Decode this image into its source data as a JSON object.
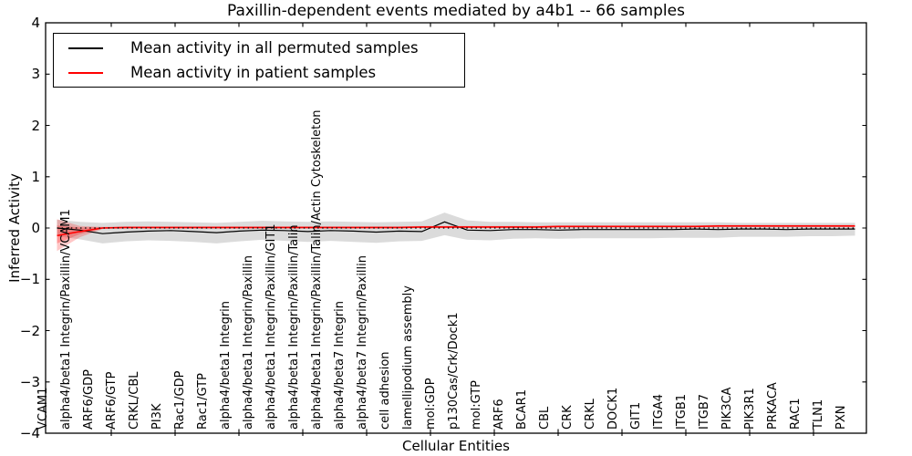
{
  "figure": {
    "title": "Paxillin-dependent events mediated by a4b1 -- 66 samples"
  },
  "chart_data": {
    "type": "line",
    "title": "Paxillin-dependent events mediated by a4b1 -- 66 samples",
    "xlabel": "Cellular Entities",
    "ylabel": "Inferred Activity",
    "ylim": [
      -4,
      4
    ],
    "grid": false,
    "legend_position": "upper left",
    "zero_line": {
      "value": 0,
      "style": "dotted",
      "color": "#000000"
    },
    "y_ticks": [
      4,
      3,
      2,
      1,
      0,
      -1,
      -2,
      -3,
      -4
    ],
    "y_tick_labels": [
      "4",
      "3",
      "2",
      "1",
      "0",
      "−1",
      "−2",
      "−3",
      "−4"
    ],
    "categories": [
      "VCAM1",
      "alpha4/beta1 Integrin/Paxillin/VCAM1",
      "ARF6/GDP",
      "ARF6/GTP",
      "CRKL/CBL",
      "PI3K",
      "Rac1/GDP",
      "Rac1/GTP",
      "alpha4/beta1 Integrin",
      "alpha4/beta1 Integrin/Paxillin",
      "alpha4/beta1 Integrin/Paxillin/GIT1",
      "alpha4/beta1 Integrin/Paxillin/Talin",
      "alpha4/beta1 Integrin/Paxillin/Talin/Actin Cytoskeleton",
      "alpha4/beta7 Integrin",
      "alpha4/beta7 Integrin/Paxillin",
      "cell adhesion",
      "lamellipodium assembly",
      "mol:GDP",
      "p130Cas/Crk/Dock1",
      "mol:GTP",
      "ARF6",
      "BCAR1",
      "CBL",
      "CRK",
      "CRKL",
      "DOCK1",
      "GIT1",
      "ITGA4",
      "ITGB1",
      "ITGB7",
      "PIK3CA",
      "PIK3R1",
      "PRKACA",
      "RAC1",
      "TLN1",
      "PXN"
    ],
    "series": [
      {
        "name": "Mean activity in all permuted samples",
        "color": "#000000",
        "band_color": "#999999",
        "band_opacity": 0.35,
        "values": [
          0.0,
          -0.04,
          -0.11,
          -0.08,
          -0.06,
          -0.05,
          -0.07,
          -0.09,
          -0.06,
          -0.04,
          -0.05,
          -0.07,
          -0.05,
          -0.06,
          -0.08,
          -0.06,
          -0.07,
          0.12,
          -0.04,
          -0.05,
          -0.03,
          -0.03,
          -0.04,
          -0.03,
          -0.03,
          -0.03,
          -0.03,
          -0.03,
          -0.02,
          -0.03,
          -0.02,
          -0.02,
          -0.03,
          -0.02,
          -0.02,
          -0.02
        ],
        "band_upper": [
          0.16,
          0.12,
          0.1,
          0.12,
          0.13,
          0.12,
          0.11,
          0.1,
          0.12,
          0.14,
          0.13,
          0.12,
          0.13,
          0.12,
          0.11,
          0.12,
          0.13,
          0.3,
          0.15,
          0.12,
          0.12,
          0.11,
          0.11,
          0.11,
          0.11,
          0.11,
          0.11,
          0.11,
          0.11,
          0.11,
          0.1,
          0.1,
          0.1,
          0.1,
          0.1,
          0.1
        ],
        "band_lower": [
          -0.16,
          -0.22,
          -0.3,
          -0.26,
          -0.24,
          -0.25,
          -0.27,
          -0.3,
          -0.26,
          -0.23,
          -0.25,
          -0.27,
          -0.25,
          -0.27,
          -0.29,
          -0.26,
          -0.25,
          -0.14,
          -0.23,
          -0.24,
          -0.21,
          -0.2,
          -0.21,
          -0.2,
          -0.2,
          -0.2,
          -0.2,
          -0.19,
          -0.19,
          -0.19,
          -0.17,
          -0.17,
          -0.17,
          -0.16,
          -0.16,
          -0.15
        ]
      },
      {
        "name": "Mean activity in patient samples",
        "color": "#ff0000",
        "band_color": "#ff0000",
        "band_opacity": 0.22,
        "values": [
          -0.15,
          -0.07,
          0.0,
          0.01,
          0.01,
          0.01,
          0.01,
          0.01,
          0.01,
          0.01,
          0.01,
          0.01,
          0.01,
          0.01,
          0.01,
          0.01,
          0.02,
          0.02,
          0.02,
          0.02,
          0.02,
          0.02,
          0.03,
          0.03,
          0.03,
          0.03,
          0.03,
          0.03,
          0.03,
          0.04,
          0.04,
          0.04,
          0.04,
          0.04,
          0.04,
          0.04
        ],
        "band_upper": [
          0.17,
          0.04,
          0.02,
          0.03,
          0.03,
          0.03,
          0.03,
          0.03,
          0.03,
          0.03,
          0.03,
          0.03,
          0.03,
          0.03,
          0.03,
          0.03,
          0.04,
          0.04,
          0.04,
          0.04,
          0.04,
          0.04,
          0.05,
          0.05,
          0.05,
          0.05,
          0.05,
          0.05,
          0.05,
          0.06,
          0.06,
          0.06,
          0.06,
          0.06,
          0.06,
          0.06
        ],
        "band_lower": [
          -0.45,
          -0.18,
          -0.02,
          -0.01,
          -0.01,
          -0.01,
          -0.01,
          -0.01,
          -0.01,
          -0.01,
          -0.01,
          -0.01,
          -0.01,
          -0.01,
          -0.01,
          -0.01,
          0.0,
          0.0,
          0.0,
          0.0,
          0.0,
          0.0,
          0.01,
          0.01,
          0.01,
          0.01,
          0.01,
          0.01,
          0.01,
          0.02,
          0.02,
          0.02,
          0.02,
          0.02,
          0.02,
          0.02
        ],
        "band_inner_upper": [
          0.05,
          0.01,
          0.02,
          0.02,
          0.02,
          0.02,
          0.02,
          0.02,
          0.02,
          0.02,
          0.02,
          0.02,
          0.02,
          0.02,
          0.02,
          0.02,
          0.03,
          0.03,
          0.03,
          0.03,
          0.03,
          0.03,
          0.04,
          0.04,
          0.04,
          0.04,
          0.04,
          0.04,
          0.04,
          0.05,
          0.05,
          0.05,
          0.05,
          0.05,
          0.05,
          0.05
        ],
        "band_inner_lower": [
          -0.3,
          -0.12,
          -0.01,
          0.0,
          0.0,
          0.0,
          0.0,
          0.0,
          0.0,
          0.0,
          0.0,
          0.0,
          0.0,
          0.0,
          0.0,
          0.0,
          0.01,
          0.01,
          0.01,
          0.01,
          0.01,
          0.01,
          0.02,
          0.02,
          0.02,
          0.02,
          0.02,
          0.02,
          0.02,
          0.03,
          0.03,
          0.03,
          0.03,
          0.03,
          0.03,
          0.03
        ]
      }
    ]
  },
  "legend": {
    "items": [
      {
        "label": "Mean activity in all permuted samples",
        "color": "#000000"
      },
      {
        "label": "Mean activity in patient samples",
        "color": "#ff0000"
      }
    ]
  }
}
